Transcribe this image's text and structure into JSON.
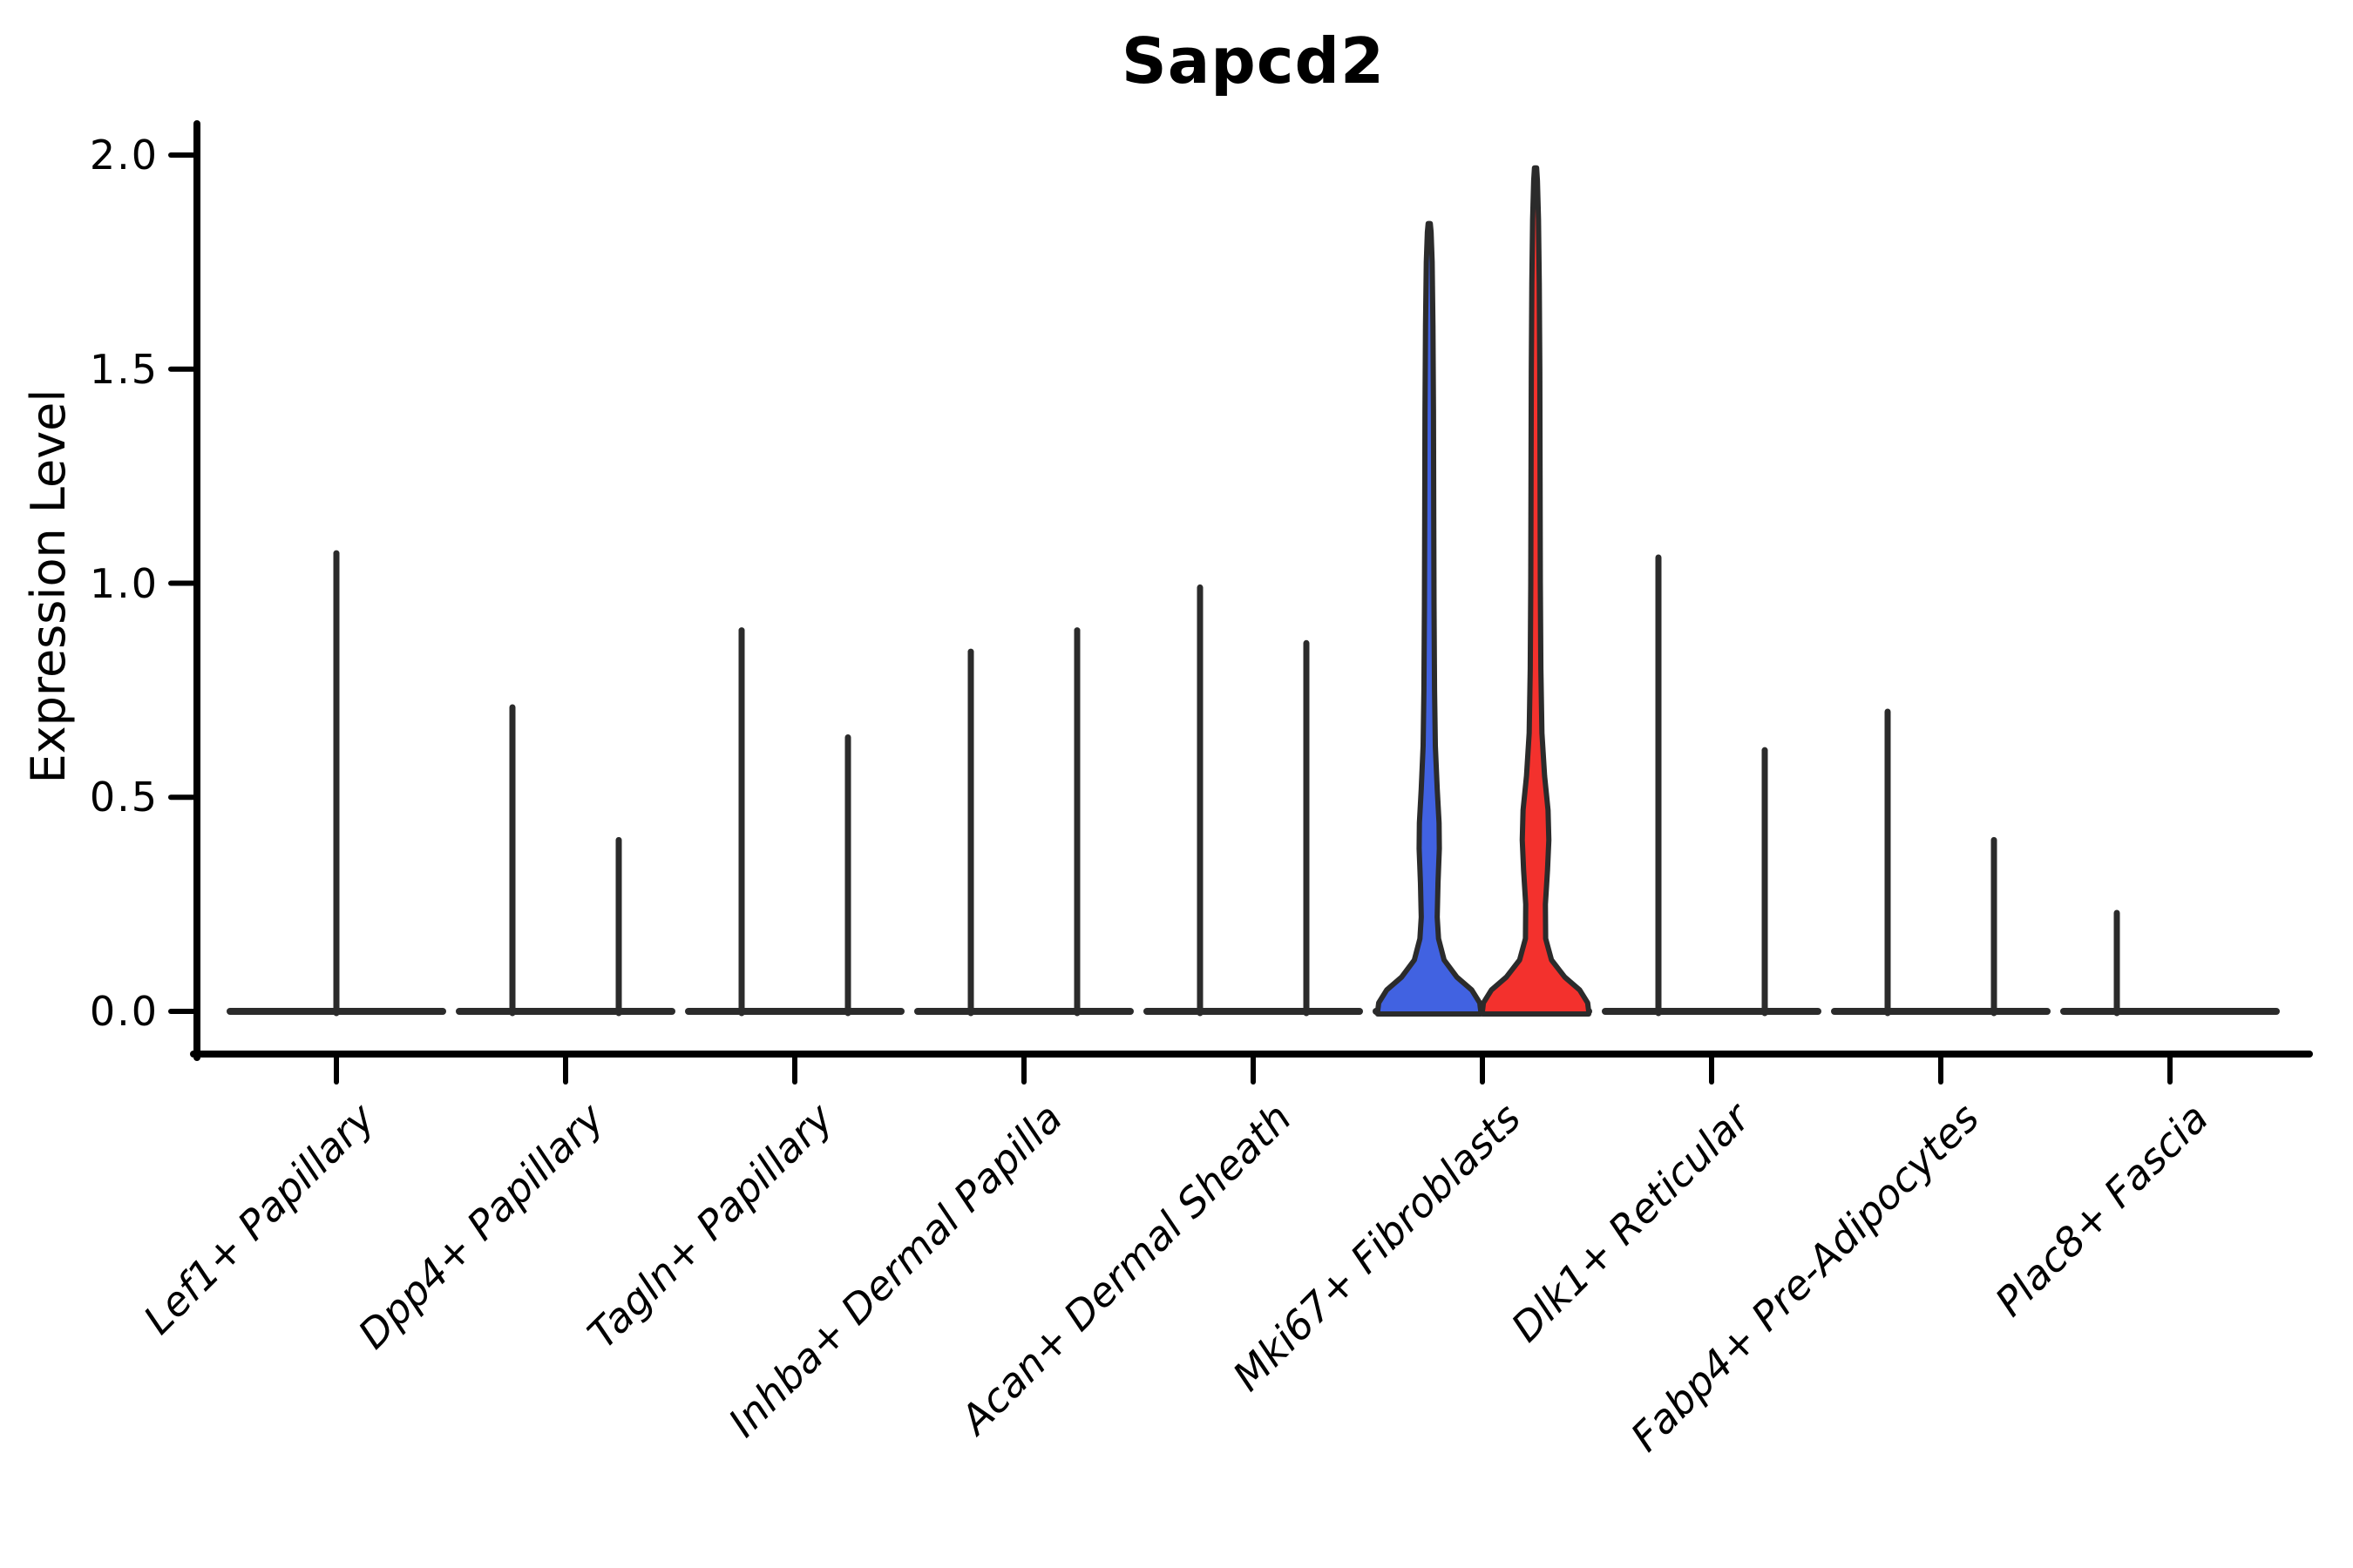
{
  "title": "Sapcd2",
  "y_axis": {
    "label": "Expression Level",
    "tick_labels": [
      "0.0",
      "0.5",
      "1.0",
      "1.5",
      "2.0"
    ]
  },
  "chart_data": {
    "type": "violin",
    "title": "Sapcd2",
    "xlabel": "",
    "ylabel": "Expression Level",
    "ylim": [
      0,
      2.07
    ],
    "yticks": [
      0.0,
      0.5,
      1.0,
      1.5,
      2.0
    ],
    "grid": false,
    "legend_position": "none",
    "categories": [
      "Lef1+ Papillary",
      "Dpp4+ Papillary",
      "Tagln+ Papillary",
      "Inhba+ Dermal Papilla",
      "Acan+ Dermal Sheath",
      "Mki67+ Fibroblasts",
      "Dlk1+ Reticular",
      "Fabp4+ Pre-Adipocytes",
      "Plac8+ Fascia"
    ],
    "description": "Split violin plot of Sapcd2 expression; most violins collapse to thin spikes (near-zero density above 0), only Mki67+ Fibroblasts shows filled blue/red violin bodies.",
    "groups": [
      {
        "category": "Lef1+ Papillary",
        "violins": [
          {
            "position": "center",
            "max": 1.07,
            "style": "spike"
          }
        ]
      },
      {
        "category": "Dpp4+ Papillary",
        "violins": [
          {
            "position": "left",
            "max": 0.71,
            "style": "spike"
          },
          {
            "position": "right",
            "max": 0.4,
            "style": "spike"
          }
        ]
      },
      {
        "category": "Tagln+ Papillary",
        "violins": [
          {
            "position": "left",
            "max": 0.89,
            "style": "spike"
          },
          {
            "position": "right",
            "max": 0.64,
            "style": "spike"
          }
        ]
      },
      {
        "category": "Inhba+ Dermal Papilla",
        "violins": [
          {
            "position": "left",
            "max": 0.84,
            "style": "spike"
          },
          {
            "position": "right",
            "max": 0.89,
            "style": "spike"
          }
        ]
      },
      {
        "category": "Acan+ Dermal Sheath",
        "violins": [
          {
            "position": "left",
            "max": 0.99,
            "style": "spike"
          },
          {
            "position": "right",
            "max": 0.86,
            "style": "spike"
          }
        ]
      },
      {
        "category": "Mki67+ Fibroblasts",
        "violins": [
          {
            "position": "left",
            "max": 1.84,
            "style": "filled",
            "color": "#4162E1",
            "shape": [
              [
                0,
                0.97
              ],
              [
                0.02,
                0.95
              ],
              [
                0.05,
                0.8
              ],
              [
                0.08,
                0.52
              ],
              [
                0.12,
                0.28
              ],
              [
                0.17,
                0.175
              ],
              [
                0.22,
                0.15
              ],
              [
                0.3,
                0.165
              ],
              [
                0.38,
                0.19
              ],
              [
                0.44,
                0.185
              ],
              [
                0.52,
                0.15
              ],
              [
                0.62,
                0.115
              ],
              [
                0.75,
                0.1
              ],
              [
                0.95,
                0.09
              ],
              [
                1.15,
                0.085
              ],
              [
                1.4,
                0.08
              ],
              [
                1.6,
                0.07
              ],
              [
                1.75,
                0.055
              ],
              [
                1.82,
                0.035
              ],
              [
                1.84,
                0.02
              ]
            ]
          },
          {
            "position": "right",
            "max": 1.97,
            "style": "filled",
            "color": "#F3312D",
            "shape": [
              [
                0,
                1.0
              ],
              [
                0.02,
                0.98
              ],
              [
                0.05,
                0.83
              ],
              [
                0.08,
                0.55
              ],
              [
                0.12,
                0.3
              ],
              [
                0.17,
                0.19
              ],
              [
                0.25,
                0.185
              ],
              [
                0.33,
                0.225
              ],
              [
                0.4,
                0.25
              ],
              [
                0.47,
                0.235
              ],
              [
                0.55,
                0.17
              ],
              [
                0.65,
                0.12
              ],
              [
                0.8,
                0.1
              ],
              [
                1.0,
                0.09
              ],
              [
                1.25,
                0.085
              ],
              [
                1.5,
                0.08
              ],
              [
                1.7,
                0.07
              ],
              [
                1.85,
                0.055
              ],
              [
                1.94,
                0.035
              ],
              [
                1.97,
                0.02
              ]
            ]
          }
        ]
      },
      {
        "category": "Dlk1+ Reticular",
        "violins": [
          {
            "position": "left",
            "max": 1.06,
            "style": "spike"
          },
          {
            "position": "right",
            "max": 0.61,
            "style": "spike"
          }
        ]
      },
      {
        "category": "Fabp4+ Pre-Adipocytes",
        "violins": [
          {
            "position": "left",
            "max": 0.7,
            "style": "spike"
          },
          {
            "position": "right",
            "max": 0.4,
            "style": "spike"
          }
        ]
      },
      {
        "category": "Plac8+ Fascia",
        "violins": [
          {
            "position": "left",
            "max": 0.23,
            "style": "spike"
          }
        ]
      }
    ],
    "colors": {
      "split_group_1": "#4162E1",
      "split_group_2": "#F3312D",
      "violin_outline": "#2b2b2b",
      "axis": "#000000",
      "background": "#ffffff"
    }
  }
}
